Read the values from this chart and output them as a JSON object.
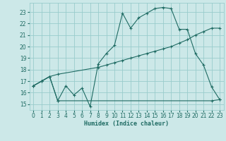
{
  "xlabel": "Humidex (Indice chaleur)",
  "xlim": [
    -0.5,
    23.5
  ],
  "ylim": [
    14.5,
    23.8
  ],
  "yticks": [
    15,
    16,
    17,
    18,
    19,
    20,
    21,
    22,
    23
  ],
  "xticks": [
    0,
    1,
    2,
    3,
    4,
    5,
    6,
    7,
    8,
    9,
    10,
    11,
    12,
    13,
    14,
    15,
    16,
    17,
    18,
    19,
    20,
    21,
    22,
    23
  ],
  "bg_color": "#cce8e8",
  "grid_color": "#99cccc",
  "line_color": "#1f6b63",
  "line1_x": [
    0,
    1,
    2,
    3,
    4,
    5,
    6,
    7,
    8,
    9,
    10,
    11,
    12,
    13,
    14,
    15,
    16,
    17,
    18,
    19,
    20,
    21,
    22,
    23
  ],
  "line1_y": [
    16.6,
    17.0,
    17.4,
    15.3,
    16.6,
    15.8,
    16.4,
    14.8,
    18.5,
    19.4,
    20.1,
    22.9,
    21.6,
    22.5,
    22.9,
    23.3,
    23.4,
    23.3,
    21.5,
    21.5,
    19.4,
    18.4,
    16.5,
    15.4
  ],
  "line2_x": [
    0,
    1,
    2,
    3,
    22,
    23
  ],
  "line2_y": [
    16.6,
    17.0,
    17.4,
    15.3,
    15.3,
    15.4
  ],
  "line3_x": [
    0,
    1,
    2,
    3,
    8,
    9,
    10,
    11,
    12,
    13,
    14,
    15,
    16,
    17,
    18,
    19,
    20,
    21,
    22,
    23
  ],
  "line3_y": [
    16.6,
    17.0,
    17.4,
    17.6,
    18.2,
    18.4,
    18.6,
    18.8,
    19.0,
    19.2,
    19.4,
    19.6,
    19.8,
    20.0,
    20.3,
    20.6,
    21.0,
    21.3,
    21.6,
    21.6
  ]
}
